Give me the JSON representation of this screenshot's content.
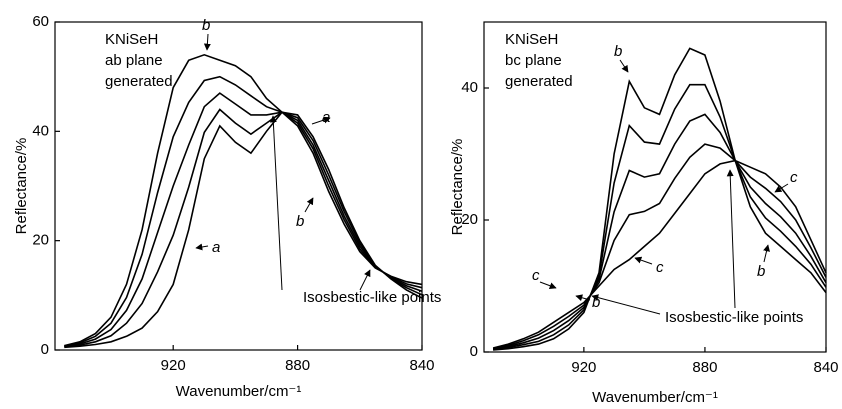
{
  "chart_data": [
    {
      "type": "line",
      "x_label": "Wavenumber/cm⁻¹",
      "y_label": "Reflectance/%",
      "annotations": [
        "KNiSeH",
        "ab plane",
        "generated",
        "b",
        "a",
        "b",
        "a",
        "Isosbestic-like points"
      ],
      "xlim": [
        958,
        840
      ],
      "xticks": [
        920,
        880,
        840
      ],
      "ylim": [
        0,
        60
      ],
      "yticks": [
        0,
        20,
        40,
        60
      ],
      "x": [
        955,
        950,
        945,
        940,
        935,
        930,
        925,
        920,
        915,
        910,
        905,
        900,
        895,
        890,
        885,
        880,
        875,
        870,
        865,
        860,
        855,
        850,
        845,
        840
      ],
      "series": [
        {
          "color": "#000000",
          "values": [
            0.5,
            0.7,
            1,
            1.5,
            2.5,
            4,
            7,
            12,
            22,
            35,
            41,
            38,
            36,
            40,
            43.5,
            43,
            39,
            33,
            26,
            20,
            15.5,
            13,
            11,
            9.5
          ]
        },
        {
          "color": "#000000",
          "values": [
            0.6,
            0.9,
            1.5,
            2.6,
            4.9,
            8.5,
            14.3,
            21,
            29.8,
            39.8,
            44,
            41.5,
            39.5,
            41.5,
            43.5,
            42.5,
            38.3,
            32,
            25.3,
            19.5,
            15.4,
            13.1,
            11.4,
            10.1
          ]
        },
        {
          "color": "#000000",
          "values": [
            0.65,
            1.1,
            2,
            3.75,
            7.25,
            13,
            21.5,
            30,
            37.5,
            44.5,
            47,
            45,
            43,
            43,
            43.5,
            42,
            37.5,
            31,
            24.5,
            19,
            15.25,
            13.25,
            11.75,
            10.75
          ]
        },
        {
          "color": "#000000",
          "values": [
            0.7,
            1.3,
            2.5,
            4.9,
            9.6,
            17.5,
            28.8,
            39,
            45.3,
            49.3,
            50,
            48.5,
            46.5,
            44.5,
            43.5,
            41.5,
            36.8,
            30,
            23.8,
            18.5,
            15.1,
            13.4,
            12.1,
            11.4
          ]
        },
        {
          "color": "#000000",
          "values": [
            0.8,
            1.5,
            3,
            6,
            12,
            22,
            36,
            48,
            53,
            54,
            53,
            52,
            50,
            46,
            43.5,
            41,
            36,
            29,
            23,
            18,
            15,
            13.5,
            12.5,
            12
          ]
        }
      ]
    },
    {
      "type": "line",
      "x_label": "Wavenumber/cm⁻¹",
      "y_label": "Reflectance/%",
      "annotations": [
        "KNiSeH",
        "bc plane",
        "generated",
        "b",
        "c",
        "b",
        "c",
        "c",
        "b",
        "Isosbestic-like points"
      ],
      "xlim": [
        953,
        840
      ],
      "xticks": [
        920,
        880,
        840
      ],
      "ylim": [
        0,
        50
      ],
      "yticks": [
        0,
        20,
        40
      ],
      "x": [
        950,
        945,
        940,
        935,
        930,
        925,
        920,
        915,
        910,
        905,
        900,
        895,
        890,
        885,
        880,
        875,
        870,
        865,
        860,
        855,
        850,
        845,
        840
      ],
      "series": [
        {
          "color": "#000000",
          "values": [
            0.3,
            0.5,
            0.8,
            1.2,
            2,
            3.5,
            6,
            12,
            30,
            41,
            37,
            36,
            42,
            46,
            45,
            38,
            29,
            22,
            18,
            16,
            14,
            12,
            9
          ]
        },
        {
          "color": "#000000",
          "values": [
            0.4,
            0.7,
            1.1,
            1.6,
            2.6,
            4.1,
            6.4,
            11.5,
            25.6,
            34.3,
            31.8,
            31.5,
            36.8,
            40.5,
            40.5,
            35.6,
            29,
            23.5,
            20.3,
            18.3,
            16,
            13.3,
            9.8
          ]
        },
        {
          "color": "#000000",
          "values": [
            0.45,
            0.85,
            1.4,
            2.1,
            3.25,
            4.75,
            6.75,
            11,
            21.25,
            27.5,
            26.5,
            27,
            31.5,
            35,
            36,
            33.25,
            29,
            25,
            22.5,
            20.5,
            18,
            14.5,
            10.5
          ]
        },
        {
          "color": "#000000",
          "values": [
            0.5,
            1,
            1.7,
            2.6,
            3.9,
            5.4,
            7.1,
            10.5,
            16.9,
            20.8,
            21.3,
            22.5,
            26.3,
            29.5,
            31.5,
            30.9,
            29,
            26.5,
            24.8,
            22.8,
            20,
            15.8,
            11.3
          ]
        },
        {
          "color": "#000000",
          "values": [
            0.6,
            1.2,
            2,
            3,
            4.5,
            6,
            7.5,
            10,
            12.5,
            14,
            16,
            18,
            21,
            24,
            27,
            28.5,
            29,
            28,
            27,
            25,
            22,
            17,
            12
          ]
        }
      ]
    }
  ]
}
